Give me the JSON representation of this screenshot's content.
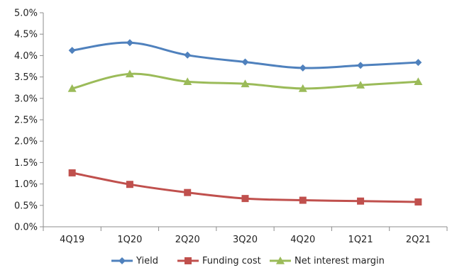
{
  "chart_data": {
    "type": "line",
    "title": "",
    "xlabel": "",
    "ylabel": "",
    "categories": [
      "4Q19",
      "1Q20",
      "2Q20",
      "3Q20",
      "4Q20",
      "1Q21",
      "2Q21"
    ],
    "ylim": [
      0,
      0.05
    ],
    "y_ticks": [
      "0.0%",
      "0.5%",
      "1.0%",
      "1.5%",
      "2.0%",
      "2.5%",
      "3.0%",
      "3.5%",
      "4.0%",
      "4.5%",
      "5.0%"
    ],
    "grid": false,
    "legend_position": "bottom",
    "series": [
      {
        "name": "Yield",
        "color": "#4F81BD",
        "marker": "diamond",
        "values": [
          0.0412,
          0.043,
          0.0401,
          0.0385,
          0.0371,
          0.0377,
          0.0384
        ]
      },
      {
        "name": "Funding cost",
        "color": "#C0504D",
        "marker": "square",
        "values": [
          0.0126,
          0.0099,
          0.008,
          0.0066,
          0.0062,
          0.006,
          0.0058
        ]
      },
      {
        "name": "Net interest margin",
        "color": "#9BBB59",
        "marker": "triangle",
        "values": [
          0.0323,
          0.0357,
          0.0339,
          0.0334,
          0.0323,
          0.0331,
          0.0339
        ]
      }
    ]
  }
}
